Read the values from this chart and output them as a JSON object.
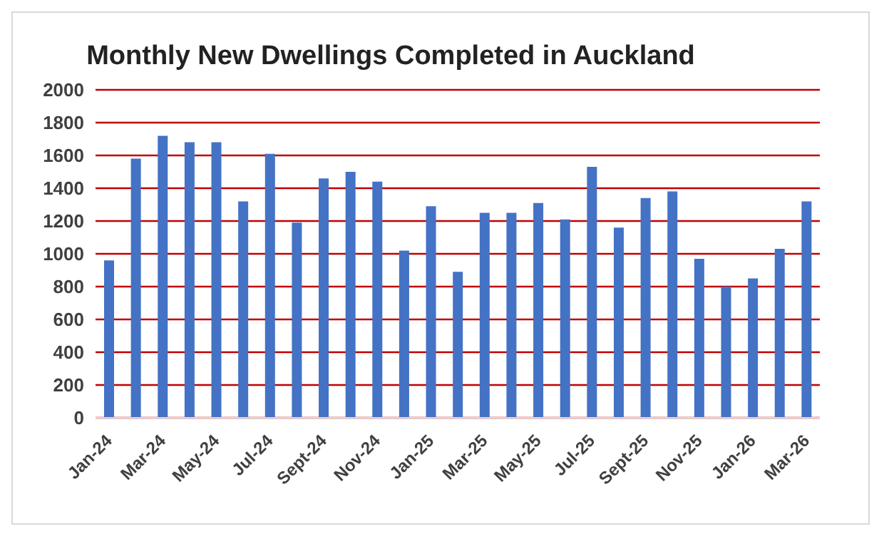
{
  "chart_data": {
    "type": "bar",
    "title": "Monthly New Dwellings Completed in Auckland",
    "categories": [
      "Jan-24",
      null,
      "Mar-24",
      null,
      "May-24",
      null,
      "Jul-24",
      null,
      "Sept-24",
      null,
      "Nov-24",
      null,
      "Jan-25",
      null,
      "Mar-25",
      null,
      "May-25",
      null,
      "Jul-25",
      null,
      "Sept-25",
      null,
      "Nov-25",
      null,
      "Jan-26",
      null,
      "Mar-26"
    ],
    "values": [
      960,
      1580,
      1720,
      1680,
      1680,
      1320,
      1610,
      1190,
      1460,
      1500,
      1440,
      1020,
      1290,
      890,
      1250,
      1250,
      1310,
      1210,
      1530,
      1160,
      1340,
      1380,
      970,
      800,
      850,
      1030,
      1320
    ],
    "color": "#4472c4",
    "ylim": [
      0,
      2000
    ],
    "yticks": [
      0,
      200,
      400,
      600,
      800,
      1000,
      1200,
      1400,
      1600,
      1800,
      2000
    ],
    "grid": "y"
  }
}
